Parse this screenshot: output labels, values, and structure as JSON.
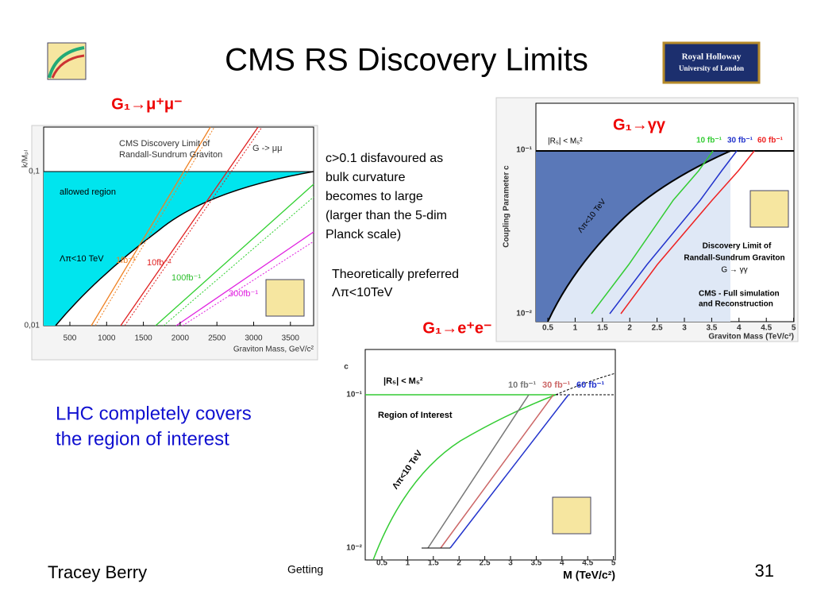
{
  "title": "CMS RS Discovery Limits",
  "logo": [
    "Royal Holloway",
    "University of London"
  ],
  "notes": {
    "curvature": [
      "c>0.1 disfavoured as",
      "bulk curvature",
      "becomes to large",
      "(larger than the 5-dim",
      "Planck scale)"
    ],
    "preferred": [
      "Theoretically preferred",
      "Λπ<10TeV"
    ],
    "conclusion": [
      "LHC completely covers",
      "the region of interest"
    ]
  },
  "plots": [
    {
      "title": "G₁→μ⁺μ⁻",
      "ylabel": "k/Mₚₗ",
      "yticks": [
        "0,1",
        "0,01"
      ],
      "xticks": [
        "500",
        "1000",
        "1500",
        "2000",
        "2500",
        "3000",
        "3500"
      ],
      "xlabel": "Graviton Mass, GeV/c²",
      "legend": [
        "CMS Discovery Limit of",
        "Randall-Sundrum Graviton",
        "G -> μμ"
      ],
      "labels": [
        "allowed region",
        "Λπ<10 TeV",
        "1fb⁻¹",
        "10fb⁻¹",
        "100fb⁻¹",
        "300fb⁻¹"
      ]
    },
    {
      "title": "G₁→γγ",
      "ylabel": "Coupling Parameter c",
      "yticks": [
        "10⁻¹",
        "10⁻²"
      ],
      "xticks": [
        "0.5",
        "1",
        "1.5",
        "2",
        "2.5",
        "3",
        "3.5",
        "4",
        "4.5",
        "5"
      ],
      "xlabel": "Graviton Mass (TeV/c²)",
      "legend": [
        "Discovery Limit of",
        "Randall-Sundrum Graviton",
        "G → γγ",
        "CMS - Full simulation",
        "and Reconstruction"
      ],
      "labels": [
        "|R₅| < M₅²",
        "Λπ<10 TeV",
        "10 fb⁻¹",
        "30 fb⁻¹",
        "60 fb⁻¹"
      ]
    },
    {
      "title": "G₁→e⁺e⁻",
      "ylabel": "c",
      "yticks": [
        "10⁻¹",
        "10⁻²"
      ],
      "xticks": [
        "0.5",
        "1",
        "1.5",
        "2",
        "2.5",
        "3",
        "3.5",
        "4",
        "4.5",
        "5"
      ],
      "xlabel": "M (TeV/c²)",
      "labels": [
        "|R₅| < M₅²",
        "Region of Interest",
        "Λπ<10 TeV",
        "10 fb⁻¹",
        "30 fb⁻¹",
        "60 fb⁻¹"
      ]
    }
  ],
  "footer": {
    "author": "Tracey Berry",
    "center": "Getting",
    "page": "31"
  }
}
